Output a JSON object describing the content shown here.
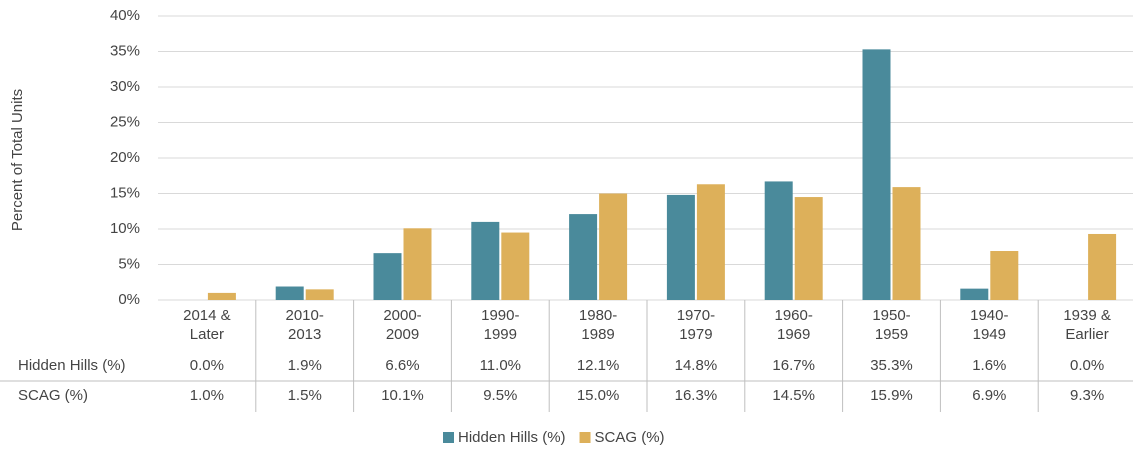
{
  "chart_data": {
    "type": "bar",
    "y_label": "Percent of Total Units",
    "categories": [
      "2014 & Later",
      "2010-2013",
      "2000-2009",
      "1990-1999",
      "1980-1989",
      "1970-1979",
      "1960-1969",
      "1950-1959",
      "1940-1949",
      "1939 & Earlier"
    ],
    "series": [
      {
        "name": "Hidden Hills (%)",
        "color": "#4a8a9b",
        "values": [
          0.0,
          1.9,
          6.6,
          11.0,
          12.1,
          14.8,
          16.7,
          35.3,
          1.6,
          0.0
        ],
        "value_labels": [
          "0.0%",
          "1.9%",
          "6.6%",
          "11.0%",
          "12.1%",
          "14.8%",
          "16.7%",
          "35.3%",
          "1.6%",
          "0.0%"
        ]
      },
      {
        "name": "SCAG (%)",
        "color": "#ddb05a",
        "values": [
          1.0,
          1.5,
          10.1,
          9.5,
          15.0,
          16.3,
          14.5,
          15.9,
          6.9,
          9.3
        ],
        "value_labels": [
          "1.0%",
          "1.5%",
          "10.1%",
          "9.5%",
          "15.0%",
          "16.3%",
          "14.5%",
          "15.9%",
          "6.9%",
          "9.3%"
        ]
      }
    ],
    "ylim": [
      0,
      40
    ],
    "yticks": [
      {
        "value": 0,
        "label": "0%"
      },
      {
        "value": 5,
        "label": "5%"
      },
      {
        "value": 10,
        "label": "10%"
      },
      {
        "value": 15,
        "label": "15%"
      },
      {
        "value": 20,
        "label": "20%"
      },
      {
        "value": 25,
        "label": "25%"
      },
      {
        "value": 30,
        "label": "30%"
      },
      {
        "value": 35,
        "label": "35%"
      },
      {
        "value": 40,
        "label": "40%"
      }
    ],
    "grid": true,
    "legend": "bottom"
  }
}
